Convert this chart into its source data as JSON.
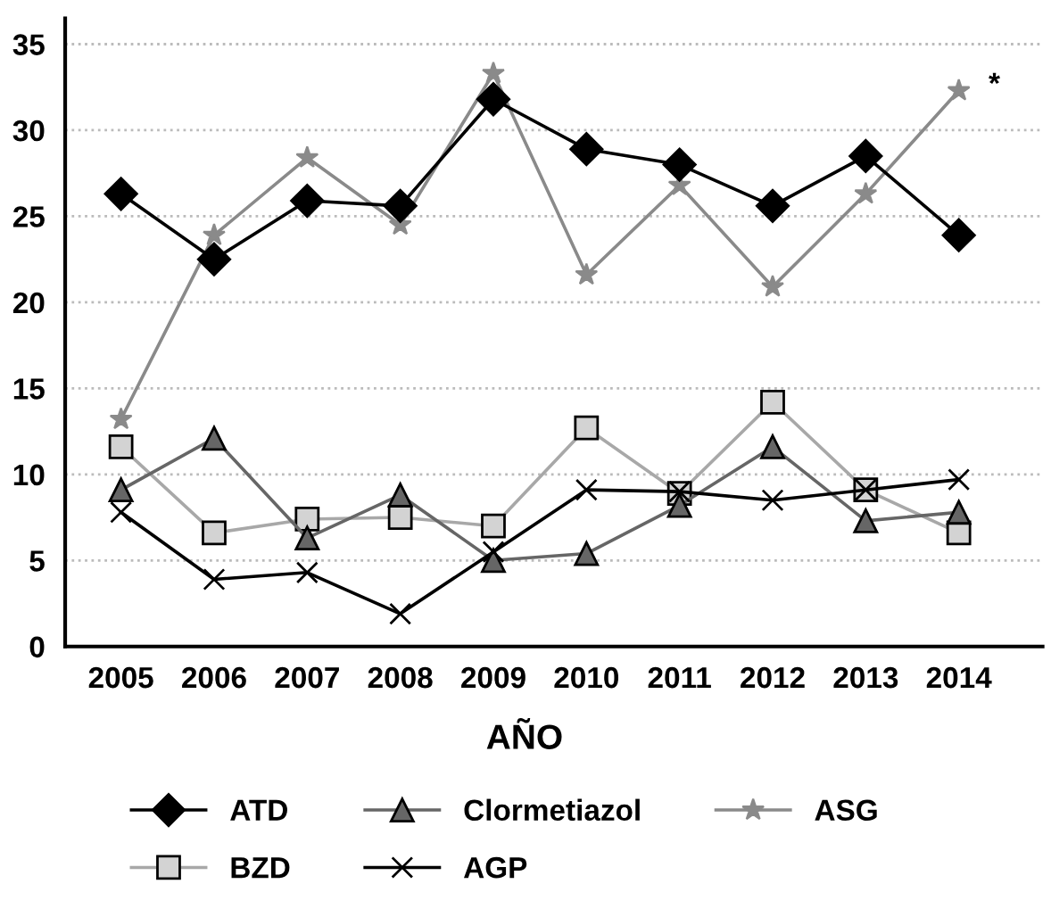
{
  "chart_data": {
    "type": "line",
    "xlabel": "AÑO",
    "categories": [
      "2005",
      "2006",
      "2007",
      "2008",
      "2009",
      "2010",
      "2011",
      "2012",
      "2013",
      "2014"
    ],
    "series": [
      {
        "name": "ATD",
        "color": "#000000",
        "marker": "diamond",
        "values": [
          26.3,
          22.5,
          25.9,
          25.6,
          31.8,
          28.9,
          28.0,
          25.6,
          28.5,
          23.9
        ]
      },
      {
        "name": "Clormetiazol",
        "color": "#666666",
        "marker": "triangle",
        "values": [
          9.1,
          12.1,
          6.3,
          8.8,
          5.0,
          5.4,
          8.2,
          11.6,
          7.3,
          7.8
        ]
      },
      {
        "name": "ASG",
        "color": "#8a8a8a",
        "marker": "star",
        "values": [
          13.2,
          23.9,
          28.4,
          24.5,
          33.3,
          21.6,
          26.8,
          20.9,
          26.3,
          32.3
        ]
      },
      {
        "name": "BZD",
        "color": "#a8a8a8",
        "marker": "square",
        "values": [
          11.6,
          6.6,
          7.4,
          7.5,
          7.0,
          12.7,
          8.9,
          14.2,
          9.1,
          6.6
        ]
      },
      {
        "name": "AGP",
        "color": "#000000",
        "marker": "cross",
        "values": [
          7.8,
          3.9,
          4.3,
          1.9,
          5.5,
          9.1,
          9.0,
          8.5,
          9.1,
          9.7
        ]
      }
    ],
    "annotations": [
      {
        "text": "*",
        "x": "2014",
        "y": 32.3
      }
    ],
    "ylim": [
      0,
      36.5
    ],
    "yticks": [
      0,
      5,
      10,
      15,
      20,
      25,
      30,
      35
    ],
    "grid": "y",
    "legend": "bottom",
    "line_style": "solid"
  }
}
